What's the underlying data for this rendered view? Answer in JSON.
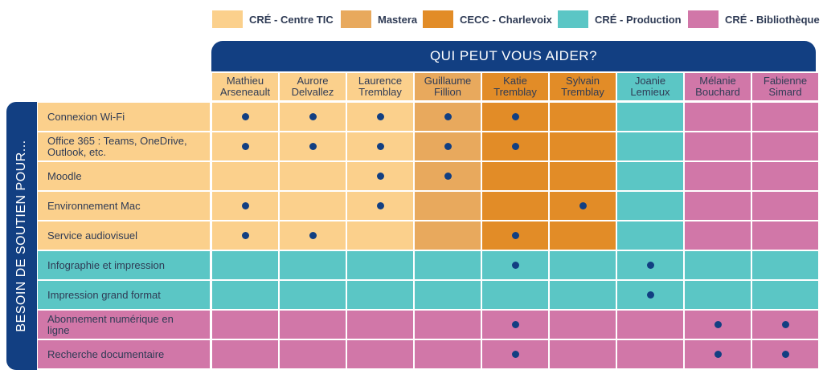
{
  "legend": [
    {
      "label": "CRÉ - Centre TIC",
      "color": "#fbd08c"
    },
    {
      "label": "Mastera",
      "color": "#e8a95d"
    },
    {
      "label": "CECC - Charlevoix",
      "color": "#e28c27"
    },
    {
      "label": "CRÉ - Production",
      "color": "#5bc6c5"
    },
    {
      "label": "CRÉ - Bibliothèque",
      "color": "#d177a8"
    }
  ],
  "header": {
    "title": "QUI PEUT VOUS AIDER?"
  },
  "side": {
    "title": "BESOIN DE SOUTIEN POUR..."
  },
  "people": [
    {
      "name": "Mathieu\nArseneault",
      "group": 0
    },
    {
      "name": "Aurore\nDelvallez",
      "group": 0
    },
    {
      "name": "Laurence\nTremblay",
      "group": 0
    },
    {
      "name": "Guillaume\nFillion",
      "group": 1
    },
    {
      "name": "Katie\nTremblay",
      "group": 2
    },
    {
      "name": "Sylvain\nTremblay",
      "group": 2
    },
    {
      "name": "Joanie\nLemieux",
      "group": 3
    },
    {
      "name": "Mélanie\nBouchard",
      "group": 4
    },
    {
      "name": "Fabienne\nSimard",
      "group": 4
    }
  ],
  "needs": [
    {
      "label": "Connexion Wi-Fi",
      "group": 0,
      "helpers": [
        0,
        1,
        2,
        3,
        4
      ]
    },
    {
      "label": "Office 365 : Teams, OneDrive,\nOutlook, etc.",
      "group": 0,
      "helpers": [
        0,
        1,
        2,
        3,
        4
      ]
    },
    {
      "label": "Moodle",
      "group": 0,
      "helpers": [
        2,
        3
      ]
    },
    {
      "label": "Environnement Mac",
      "group": 0,
      "helpers": [
        0,
        2,
        5
      ]
    },
    {
      "label": "Service audiovisuel",
      "group": 0,
      "helpers": [
        0,
        1,
        4
      ]
    },
    {
      "label": "Infographie et impression",
      "group": 3,
      "helpers": [
        4,
        6
      ]
    },
    {
      "label": "Impression grand format",
      "group": 3,
      "helpers": [
        6
      ]
    },
    {
      "label": "Abonnement numérique en\nligne",
      "group": 4,
      "helpers": [
        4,
        7,
        8
      ]
    },
    {
      "label": "Recherche documentaire",
      "group": 4,
      "helpers": [
        4,
        7,
        8
      ]
    }
  ]
}
